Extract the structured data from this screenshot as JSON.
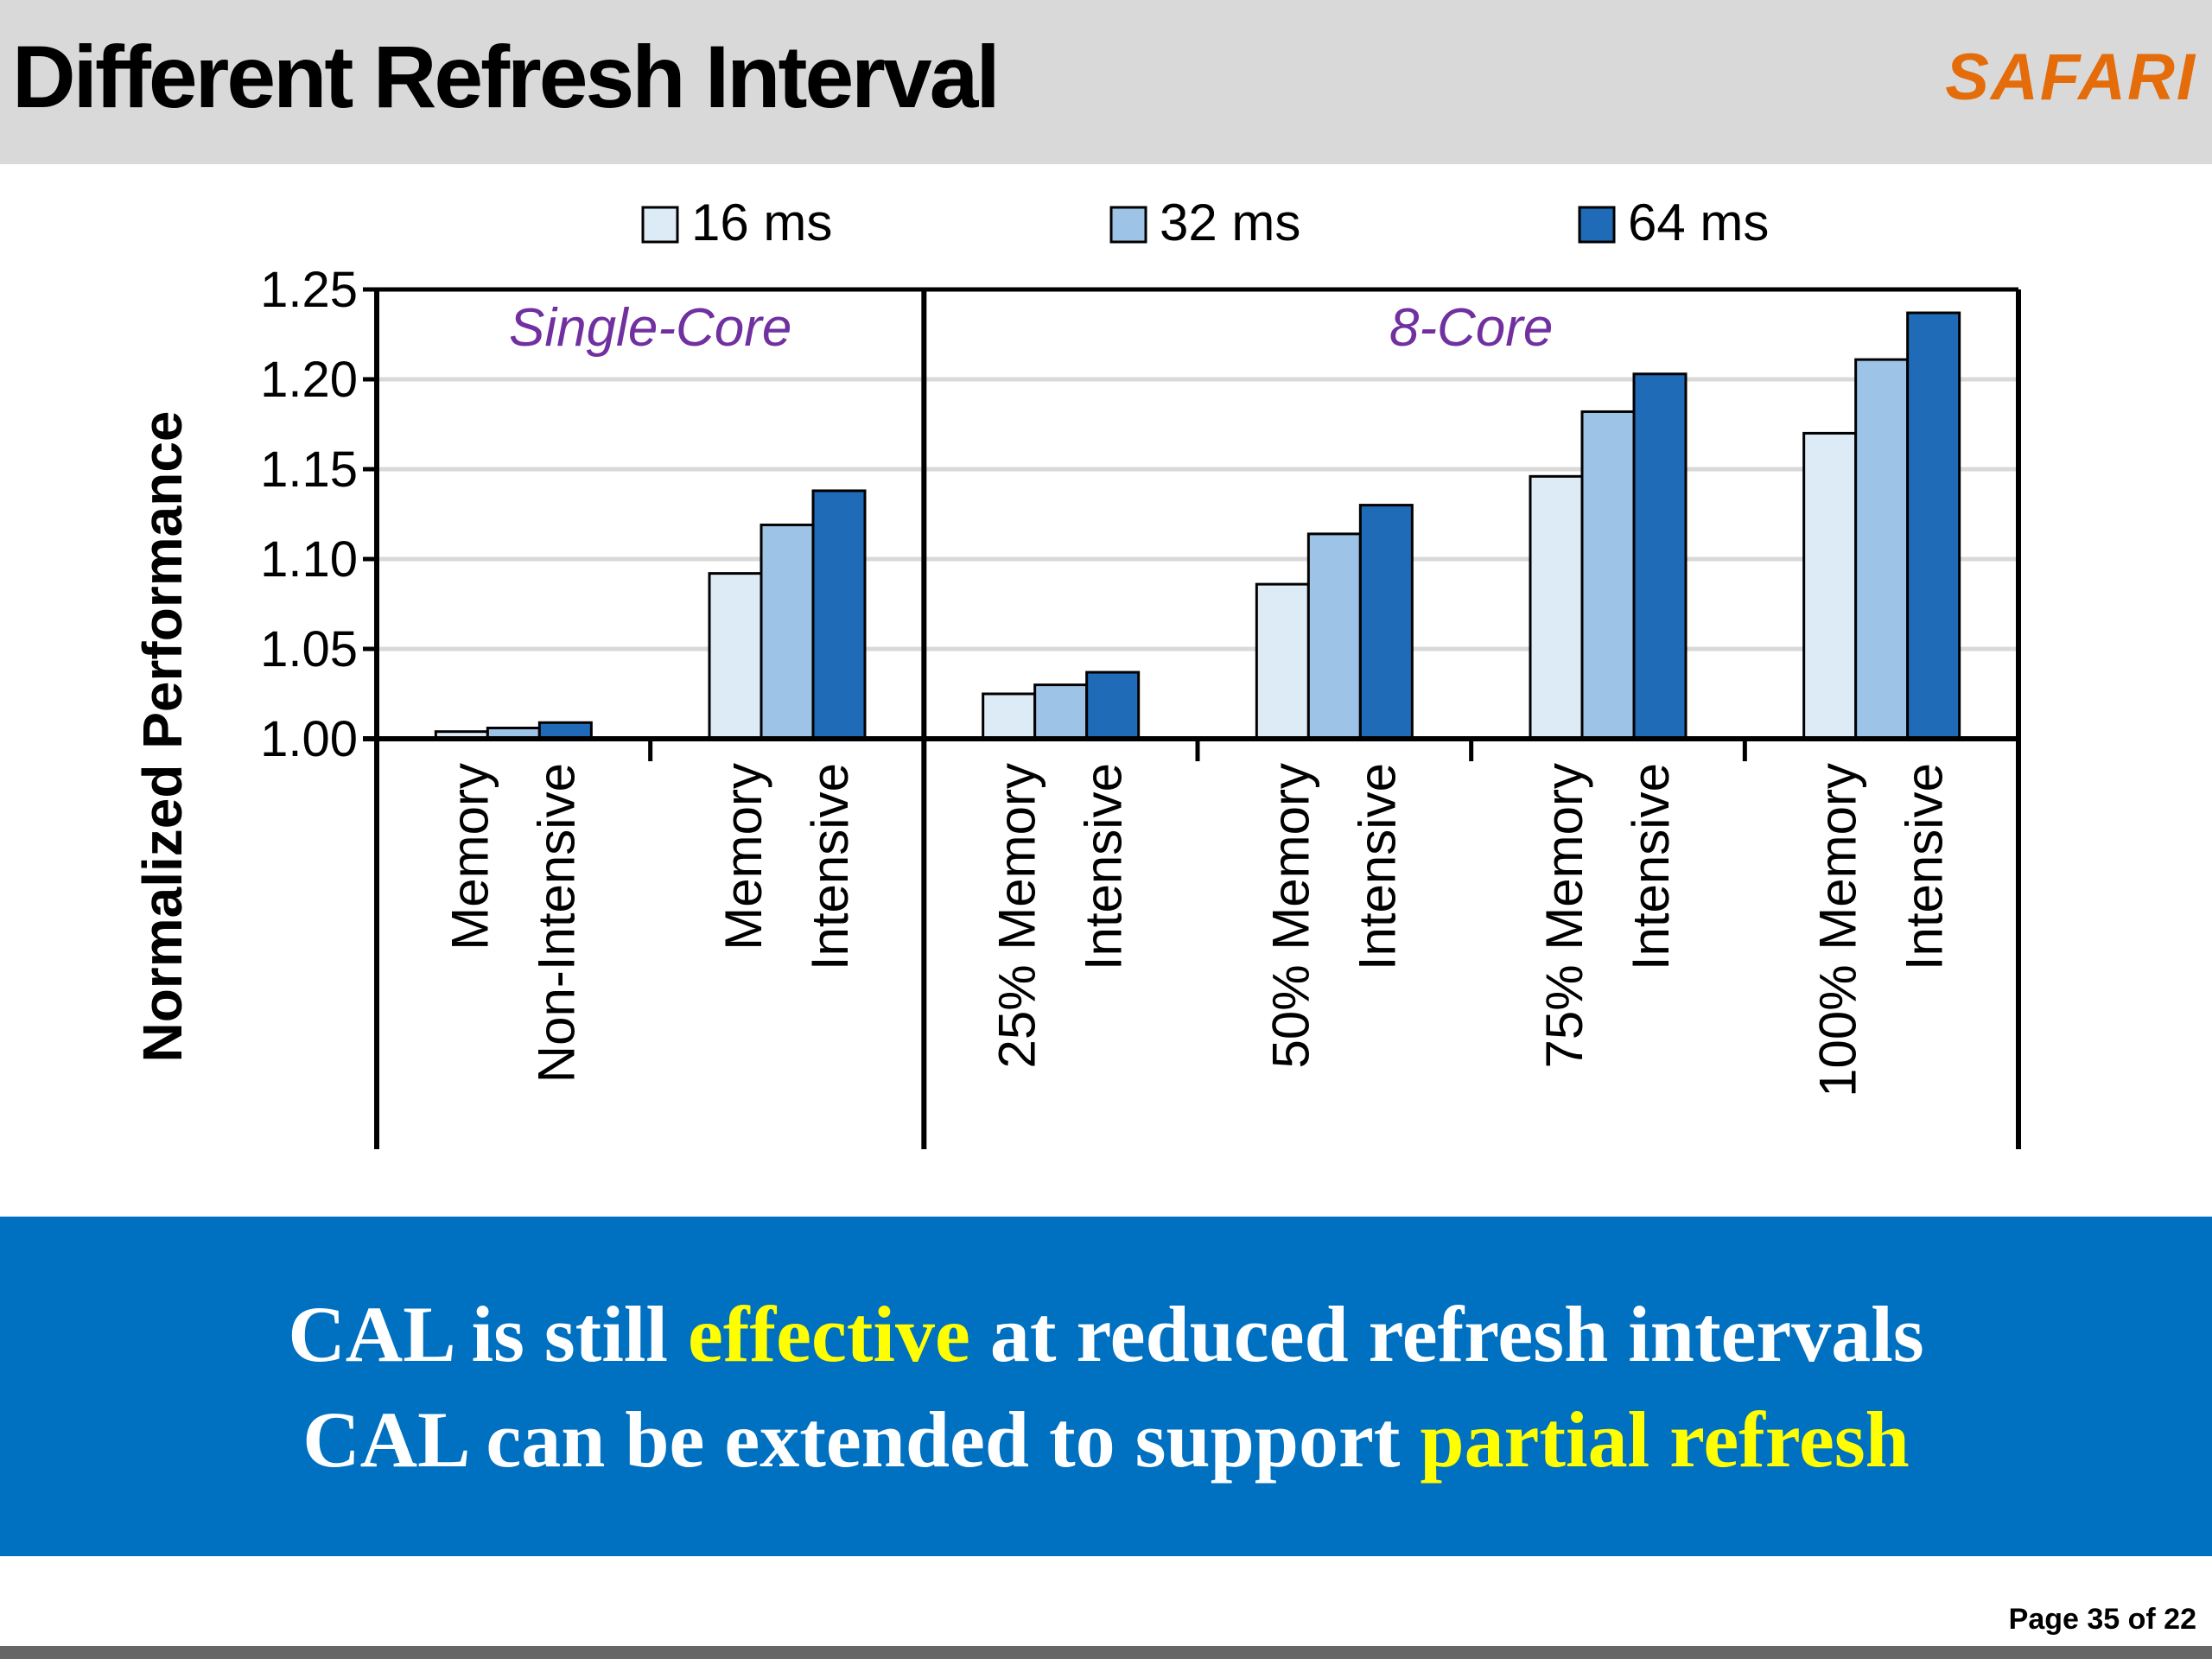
{
  "slide": {
    "title": "Different Refresh Interval",
    "logo": "SAFARI",
    "logo_color": "#e46c0a",
    "page_label": "Page 35 of 22"
  },
  "banner": {
    "color": "#0070c0",
    "line1": {
      "before": "CAL is still ",
      "highlight": "effective",
      "after": " at reduced refresh intervals"
    },
    "line2": {
      "before": "CAL can be extended to support ",
      "highlight": "partial refresh",
      "after": ""
    },
    "highlight_color": "#ffff00"
  },
  "chart_data": {
    "type": "bar",
    "ylabel": "Normalized Performance",
    "ylim": [
      1.0,
      1.25
    ],
    "yticks": [
      "1.00",
      "1.05",
      "1.10",
      "1.15",
      "1.20",
      "1.25"
    ],
    "grid": true,
    "legend_position": "top",
    "panels": [
      "Single-Core",
      "8-Core"
    ],
    "panel_label_color": "#7030a0",
    "categories": [
      [
        "Memory",
        "Non-Intensive"
      ],
      [
        "Memory",
        "Intensive"
      ],
      [
        "25% Memory",
        "Intensive"
      ],
      [
        "50% Memory",
        "Intensive"
      ],
      [
        "75% Memory",
        "Intensive"
      ],
      [
        "100% Memory",
        "Intensive"
      ]
    ],
    "category_panel": [
      0,
      0,
      1,
      1,
      1,
      1
    ],
    "series": [
      {
        "name": "16 ms",
        "color": "#ddebf7",
        "values": [
          1.004,
          1.092,
          1.025,
          1.086,
          1.146,
          1.17
        ]
      },
      {
        "name": "32 ms",
        "color": "#9dc3e6",
        "values": [
          1.006,
          1.119,
          1.03,
          1.114,
          1.182,
          1.211
        ]
      },
      {
        "name": "64 ms",
        "color": "#1f6bb8",
        "values": [
          1.009,
          1.138,
          1.037,
          1.13,
          1.203,
          1.237
        ]
      }
    ]
  }
}
